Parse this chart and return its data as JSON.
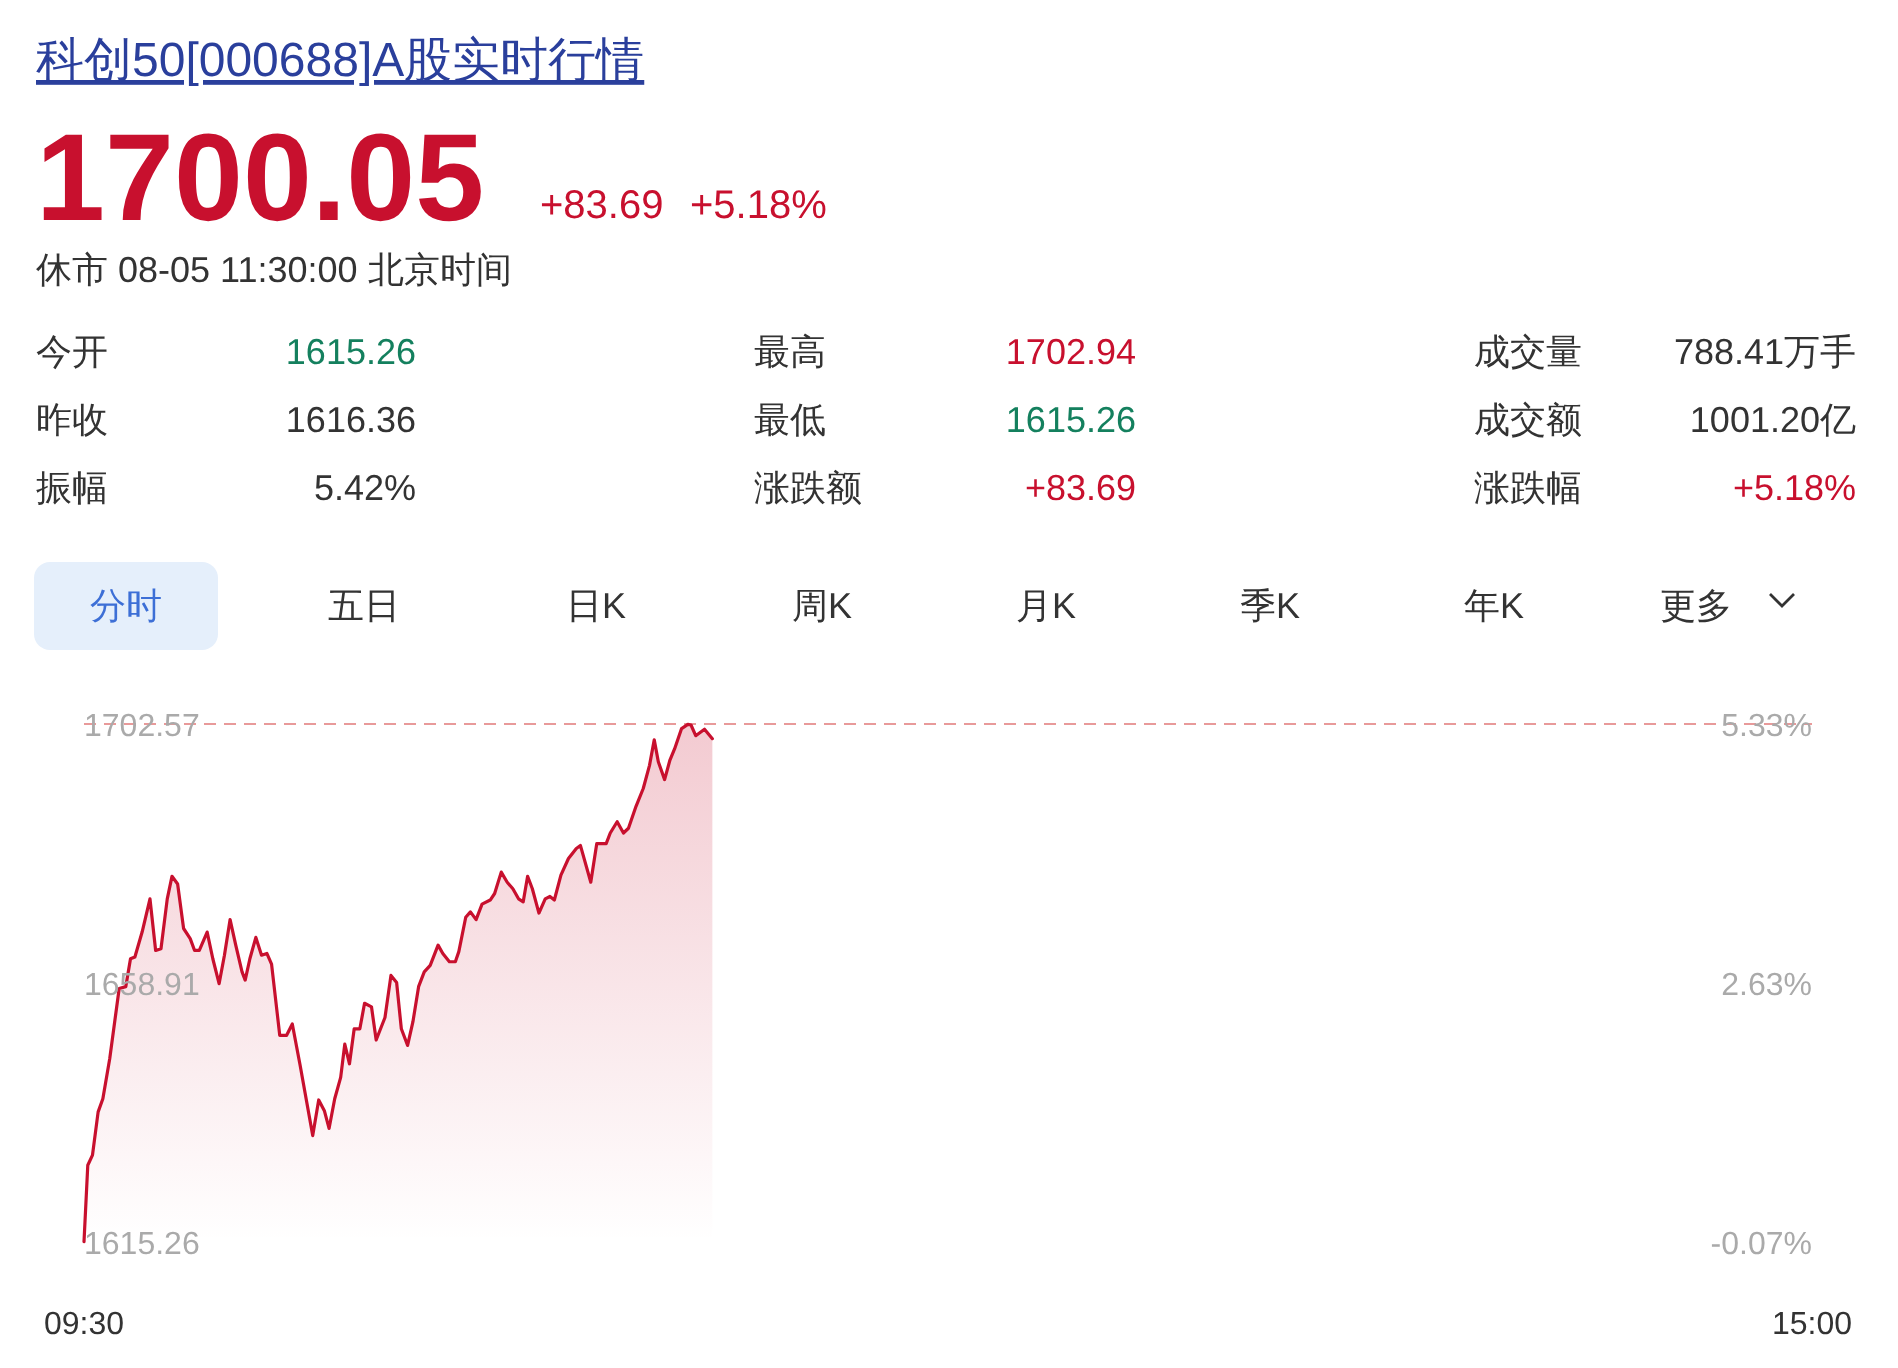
{
  "chart_data": [
    {
      "type": "other",
      "title": "科创50[000688]A股实时行情",
      "annotations": [
        "1700.05",
        "+83.69",
        "+5.18%",
        "休市 08-05 11:30:00 北京时间",
        "今开",
        "1615.26",
        "最高",
        "1702.94",
        "成交量",
        "788.41万手",
        "昨收",
        "1616.36",
        "最低",
        "1615.26",
        "成交额",
        "1001.20亿",
        "振幅",
        "5.42%",
        "涨跌额",
        "+83.69",
        "涨跌幅",
        "+5.18%",
        "分时",
        "五日",
        "日K",
        "周K",
        "月K",
        "季K",
        "年K",
        "更多"
      ]
    },
    {
      "type": "area",
      "xlim": [
        9.5,
        15
      ],
      "xticks": [
        {
          "value": 9.5,
          "label": "09:30"
        },
        {
          "value": 15,
          "label": "15:00"
        }
      ],
      "ylim": [
        1615.26,
        1702.57
      ],
      "yticks": [
        1615.26,
        1658.91,
        1702.57
      ],
      "y2lim": [
        -0.07,
        5.33
      ],
      "y2ticks": [
        {
          "value": -0.07,
          "label": "-0.07%"
        },
        {
          "value": 2.63,
          "label": "2.63%"
        },
        {
          "value": 5.33,
          "label": "5.33%"
        }
      ],
      "ref_lines": [
        {
          "axis": "y",
          "value": 1702.57,
          "color": "#e89a9a",
          "line_style": "dashed"
        }
      ],
      "series": [
        {
          "color": "#c8102e",
          "x": [
            9.5,
            9.512,
            9.527,
            9.545,
            9.56,
            9.582,
            9.612,
            9.633,
            9.648,
            9.662,
            9.685,
            9.71,
            9.728,
            9.745,
            9.765,
            9.78,
            9.798,
            9.817,
            9.838,
            9.852,
            9.867,
            9.892,
            9.91,
            9.93,
            9.947,
            9.965,
            9.983,
            10.003,
            10.013,
            10.028,
            10.047,
            10.065,
            10.082,
            10.097,
            10.123,
            10.145,
            10.163,
            10.188,
            10.228,
            10.247,
            10.265,
            10.28,
            10.298,
            10.317,
            10.33,
            10.345,
            10.36,
            10.378,
            10.393,
            10.415,
            10.43,
            10.458,
            10.477,
            10.495,
            10.51,
            10.53,
            10.547,
            10.565,
            10.583,
            10.602,
            10.627,
            10.642,
            10.663,
            10.682,
            10.693,
            10.715,
            10.73,
            10.748,
            10.767,
            10.793,
            10.807,
            10.828,
            10.847,
            10.865,
            10.883,
            10.898,
            10.912,
            10.927,
            10.948,
            10.968,
            10.983,
            10.997,
            11.018,
            11.042,
            11.067,
            11.08,
            11.113,
            11.132,
            11.162,
            11.175,
            11.197,
            11.217,
            11.233,
            11.257,
            11.28,
            11.3,
            11.315,
            11.328,
            11.348,
            11.365,
            11.38,
            11.402,
            11.422,
            11.432,
            11.447,
            11.475,
            11.5
          ],
          "values": [
            1615.3,
            1628.2,
            1629.9,
            1637.2,
            1639.4,
            1646.2,
            1658.0,
            1658.3,
            1663.0,
            1663.3,
            1667.5,
            1673.1,
            1664.4,
            1664.7,
            1673.1,
            1676.9,
            1675.6,
            1668.1,
            1666.4,
            1664.4,
            1664.4,
            1667.5,
            1663.0,
            1658.8,
            1663.6,
            1669.6,
            1665.3,
            1660.8,
            1659.4,
            1663.0,
            1666.6,
            1663.6,
            1663.9,
            1662.1,
            1650.1,
            1650.1,
            1652.0,
            1645.0,
            1633.2,
            1639.2,
            1637.4,
            1634.4,
            1639.4,
            1643.0,
            1648.6,
            1645.3,
            1651.2,
            1651.2,
            1655.5,
            1654.9,
            1649.3,
            1653.1,
            1660.2,
            1659.0,
            1651.2,
            1648.4,
            1652.4,
            1658.3,
            1660.8,
            1661.9,
            1665.3,
            1663.9,
            1662.5,
            1662.5,
            1664.2,
            1670.0,
            1670.9,
            1669.6,
            1672.2,
            1672.9,
            1674.0,
            1677.6,
            1675.9,
            1674.8,
            1673.1,
            1672.6,
            1676.9,
            1674.8,
            1670.7,
            1673.1,
            1673.5,
            1672.9,
            1677.1,
            1679.9,
            1681.6,
            1682.1,
            1675.9,
            1682.4,
            1682.4,
            1684.2,
            1686.1,
            1684.2,
            1685.0,
            1688.7,
            1691.7,
            1695.6,
            1699.9,
            1696.2,
            1693.2,
            1696.5,
            1698.4,
            1701.8,
            1702.5,
            1702.4,
            1700.6,
            1701.7,
            1700.1
          ]
        }
      ]
    }
  ]
}
